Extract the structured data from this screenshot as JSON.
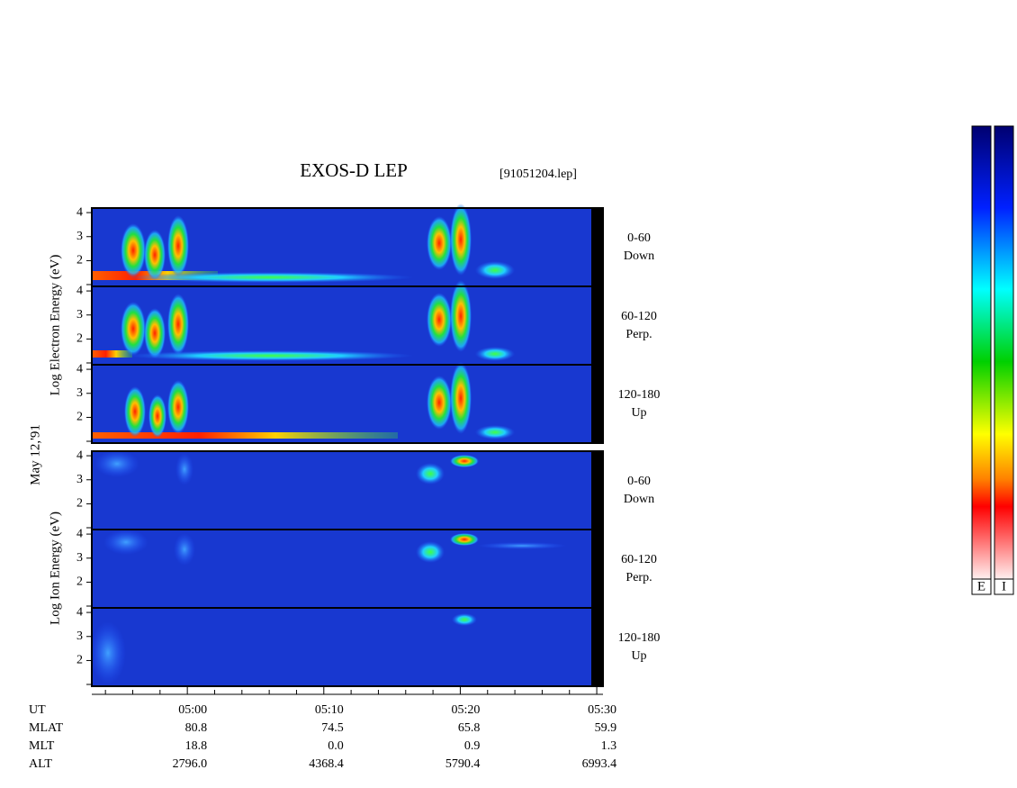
{
  "chart_data": {
    "type": "spectrogram",
    "title": "EXOS-D LEP",
    "file": "[91051204.lep]",
    "date": "May 12,'91",
    "groups": [
      {
        "ylabel": "Log  Electron  Energy (eV)",
        "panels": [
          {
            "pitch": "0-60",
            "direction": "Down"
          },
          {
            "pitch": "60-120",
            "direction": "Perp."
          },
          {
            "pitch": "120-180",
            "direction": "Up"
          }
        ]
      },
      {
        "ylabel": "Log  Ion  Energy (eV)",
        "panels": [
          {
            "pitch": "0-60",
            "direction": "Down"
          },
          {
            "pitch": "60-120",
            "direction": "Perp."
          },
          {
            "pitch": "120-180",
            "direction": "Up"
          }
        ]
      }
    ],
    "ylim": [
      0.93,
      4.19
    ],
    "yticks": [
      2,
      3,
      4
    ],
    "xlim": [
      293,
      329.6
    ],
    "xticks": [
      {
        "value": 300,
        "label": "05:00"
      },
      {
        "value": 310,
        "label": "05:10"
      },
      {
        "value": 320,
        "label": "05:20"
      },
      {
        "value": 330,
        "label": "05:30"
      }
    ],
    "xminorticks": [
      294,
      296,
      298,
      302,
      304,
      306,
      308,
      312,
      314,
      316,
      318,
      322,
      324,
      326,
      328
    ],
    "xlabel": "UT",
    "orbit": [
      {
        "label": "MLAT",
        "values": [
          "80.8",
          "74.5",
          "65.8",
          "59.9"
        ]
      },
      {
        "label": "MLT",
        "values": [
          "18.8",
          "0.0",
          "0.9",
          "1.3"
        ]
      },
      {
        "label": "ALT",
        "values": [
          "2796.0",
          "4368.4",
          "5790.4",
          "6993.4"
        ]
      }
    ],
    "colorbar_labels": [
      "E",
      "I"
    ]
  }
}
